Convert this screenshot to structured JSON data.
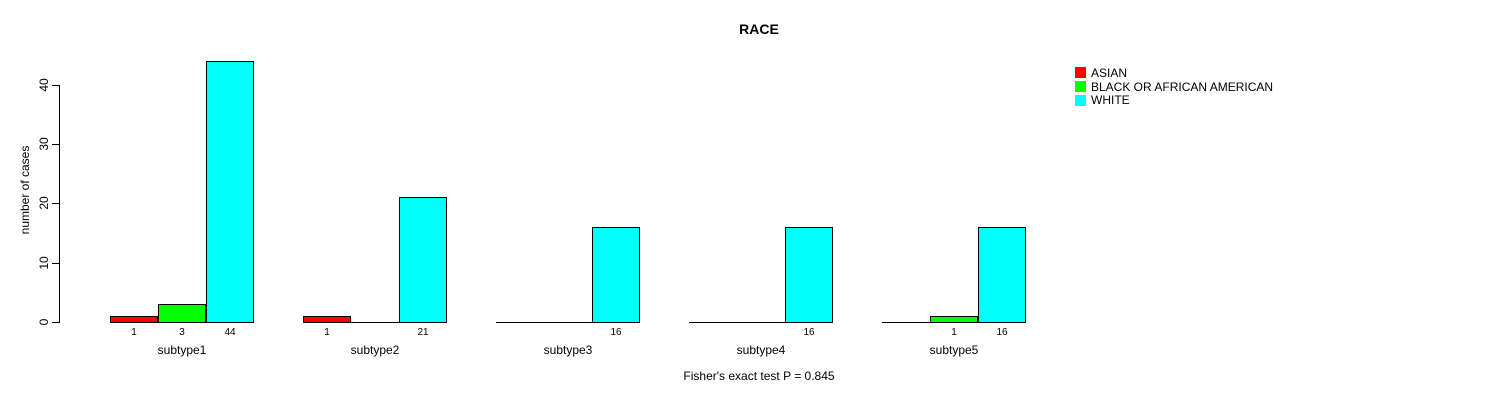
{
  "title": "RACE",
  "ylabel": "number of cases",
  "footnote": "Fisher's exact test P = 0.845",
  "colors": {
    "asian": "#FF0000",
    "black_or_african_american": "#00FF00",
    "white": "#00FFFF",
    "axis": "#000000",
    "background": "#FFFFFF"
  },
  "legend": [
    {
      "label": "ASIAN",
      "color": "#FF0000"
    },
    {
      "label": "BLACK OR AFRICAN AMERICAN",
      "color": "#00FF00"
    },
    {
      "label": "WHITE",
      "color": "#00FFFF"
    }
  ],
  "chart_data": {
    "type": "bar",
    "grouped": true,
    "title": "RACE",
    "xlabel": "",
    "ylabel": "number of cases",
    "categories": [
      "subtype1",
      "subtype2",
      "subtype3",
      "subtype4",
      "subtype5"
    ],
    "series": [
      {
        "name": "ASIAN",
        "color": "#FF0000",
        "values": [
          1,
          1,
          0,
          0,
          0
        ]
      },
      {
        "name": "BLACK OR AFRICAN AMERICAN",
        "color": "#00FF00",
        "values": [
          3,
          0,
          0,
          0,
          1
        ]
      },
      {
        "name": "WHITE",
        "color": "#00FFFF",
        "values": [
          44,
          21,
          16,
          16,
          16
        ]
      }
    ],
    "bar_value_labels": [
      [
        "1",
        "3",
        "44"
      ],
      [
        "1",
        "",
        "21"
      ],
      [
        "",
        "",
        "16"
      ],
      [
        "",
        "",
        "16"
      ],
      [
        "",
        "1",
        "16"
      ]
    ],
    "yticks": [
      0,
      10,
      20,
      30,
      40
    ],
    "ylim": [
      0,
      44
    ],
    "grid": false,
    "legend_position": "right",
    "annotation": "Fisher's exact test P = 0.845"
  }
}
